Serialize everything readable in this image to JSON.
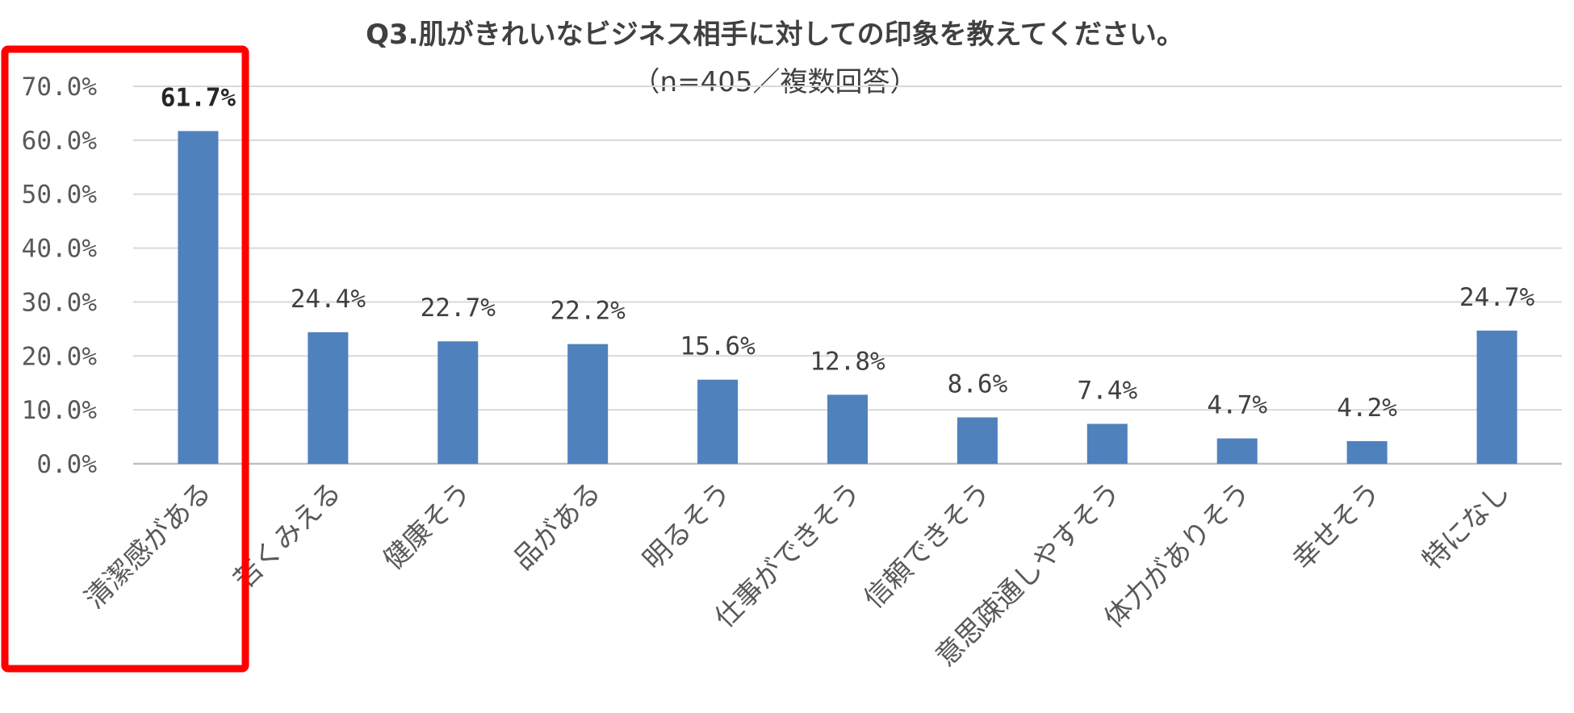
{
  "chart_data": {
    "type": "bar",
    "title": "Q3.肌がきれいなビジネス相手に対しての印象を教えてください。",
    "subtitle": "（n=405／複数回答）",
    "categories": [
      "清潔感がある",
      "若くみえる",
      "健康そう",
      "品がある",
      "明るそう",
      "仕事ができそう",
      "信頼できそう",
      "意思疎通しやすそう",
      "体力がありそう",
      "幸せそう",
      "特になし"
    ],
    "values": [
      61.7,
      24.4,
      22.7,
      22.2,
      15.6,
      12.8,
      8.6,
      7.4,
      4.7,
      4.2,
      24.7
    ],
    "value_labels": [
      "61.7%",
      "24.4%",
      "22.7%",
      "22.2%",
      "15.6%",
      "12.8%",
      "8.6%",
      "7.4%",
      "4.7%",
      "4.2%",
      "24.7%"
    ],
    "y_ticks": [
      "0.0%",
      "10.0%",
      "20.0%",
      "30.0%",
      "40.0%",
      "50.0%",
      "60.0%",
      "70.0%"
    ],
    "ylim": [
      0,
      70
    ],
    "grid": true,
    "highlighted_category": "清潔感がある",
    "colors": {
      "bar": "#4f81bd",
      "grid": "#d9d9d9",
      "highlight_box": "#ff0000",
      "text": "#404040"
    }
  }
}
